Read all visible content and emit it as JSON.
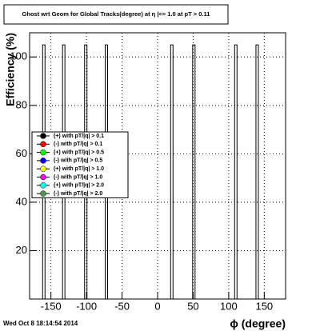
{
  "chart_data": {
    "type": "spike",
    "title": "Ghost wrt Geom for Global Tracks(degree) at η |<= 1.0 at pT > 0.11",
    "x_label": "ϕ (degree)",
    "y_label": "Efficiency (%)",
    "x": [
      -160,
      -132,
      -101,
      -72,
      20,
      51,
      110,
      140
    ],
    "values": [
      105,
      105,
      105,
      105,
      105,
      105,
      105,
      105
    ],
    "color": "#000000",
    "xlim": [
      -180,
      180
    ],
    "xticks": [
      -150,
      -100,
      -50,
      0,
      50,
      100,
      150
    ],
    "ylim": [
      0,
      110
    ],
    "yticks": [
      20,
      40,
      60,
      80,
      100
    ],
    "grid": true,
    "legend": [
      {
        "name": "(+) with pT/|q| > 0.1",
        "color": "#000000"
      },
      {
        "name": "(-) with pT/|q| > 0.1",
        "color": "#ff0000"
      },
      {
        "name": "(+) with pT/|q| > 0.5",
        "color": "#00ff00"
      },
      {
        "name": "(-) with pT/|q| > 0.5",
        "color": "#0000ff"
      },
      {
        "name": "(+) with pT/|q| > 1.0",
        "color": "#ffff00"
      },
      {
        "name": "(-) with pT/|q| > 1.0",
        "color": "#ff00ff"
      },
      {
        "name": "(+) with pT/|q| > 2.0",
        "color": "#00ffff"
      },
      {
        "name": "(-) with pT/|q| > 2.0",
        "color": "#4a9a4a"
      }
    ],
    "footer": "Wed Oct  8 18:14:54 2014"
  }
}
